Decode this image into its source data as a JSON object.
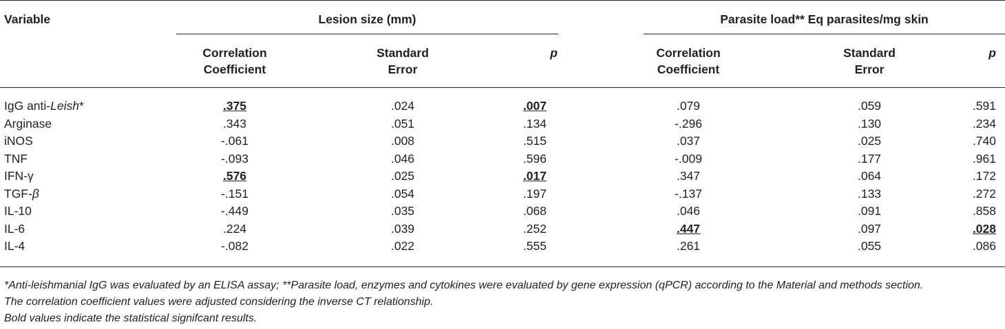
{
  "header": {
    "variable": "Variable",
    "lesion_group": "Lesion size (mm)",
    "parasite_group": "Parasite load** Eq parasites/mg skin",
    "corr_line1": "Correlation",
    "corr_line2": "Coefficient",
    "se_line1": "Standard",
    "se_line2": "Error",
    "p": "p"
  },
  "rows": [
    {
      "variable_prefix": "IgG anti-",
      "variable_italic": "Leish",
      "variable_suffix": "*",
      "lesion_cc": ".375",
      "lesion_se": ".024",
      "lesion_p": ".007",
      "parasite_cc": ".079",
      "parasite_se": ".059",
      "parasite_p": ".591"
    },
    {
      "variable_prefix": "Arginase",
      "variable_italic": "",
      "variable_suffix": "",
      "lesion_cc": ".343",
      "lesion_se": ".051",
      "lesion_p": ".134",
      "parasite_cc": "-.296",
      "parasite_se": ".130",
      "parasite_p": ".234"
    },
    {
      "variable_prefix": "iNOS",
      "variable_italic": "",
      "variable_suffix": "",
      "lesion_cc": "-.061",
      "lesion_se": ".008",
      "lesion_p": ".515",
      "parasite_cc": ".037",
      "parasite_se": ".025",
      "parasite_p": ".740"
    },
    {
      "variable_prefix": "TNF",
      "variable_italic": "",
      "variable_suffix": "",
      "lesion_cc": "-.093",
      "lesion_se": ".046",
      "lesion_p": ".596",
      "parasite_cc": "-.009",
      "parasite_se": ".177",
      "parasite_p": ".961"
    },
    {
      "variable_prefix": "IFN-γ",
      "variable_italic": "",
      "variable_suffix": "",
      "lesion_cc": ".576",
      "lesion_se": ".025",
      "lesion_p": ".017",
      "parasite_cc": ".347",
      "parasite_se": ".064",
      "parasite_p": ".172"
    },
    {
      "variable_prefix": "TGF-",
      "variable_italic": "β",
      "variable_suffix": "",
      "lesion_cc": "-.151",
      "lesion_se": ".054",
      "lesion_p": ".197",
      "parasite_cc": "-.137",
      "parasite_se": ".133",
      "parasite_p": ".272"
    },
    {
      "variable_prefix": "IL-10",
      "variable_italic": "",
      "variable_suffix": "",
      "lesion_cc": "-.449",
      "lesion_se": ".035",
      "lesion_p": ".068",
      "parasite_cc": ".046",
      "parasite_se": ".091",
      "parasite_p": ".858"
    },
    {
      "variable_prefix": "IL-6",
      "variable_italic": "",
      "variable_suffix": "",
      "lesion_cc": ".224",
      "lesion_se": ".039",
      "lesion_p": ".252",
      "parasite_cc": ".447",
      "parasite_se": ".097",
      "parasite_p": ".028"
    },
    {
      "variable_prefix": "IL-4",
      "variable_italic": "",
      "variable_suffix": "",
      "lesion_cc": "-.082",
      "lesion_se": ".022",
      "lesion_p": ".555",
      "parasite_cc": ".261",
      "parasite_se": ".055",
      "parasite_p": ".086"
    }
  ],
  "significant": [
    {
      "row": 0,
      "col": "lesion_cc"
    },
    {
      "row": 0,
      "col": "lesion_p"
    },
    {
      "row": 4,
      "col": "lesion_cc"
    },
    {
      "row": 4,
      "col": "lesion_p"
    },
    {
      "row": 7,
      "col": "parasite_cc"
    },
    {
      "row": 7,
      "col": "parasite_p"
    }
  ],
  "footnotes": {
    "line1": "*Anti-leishmanial IgG was evaluated by an ELISA assay; **Parasite load, enzymes and cytokines were evaluated by gene expression (qPCR) according to the Material and methods section.",
    "line2": "The correlation coefficient values were adjusted considering the inverse CT relationship.",
    "line3": "Bold values indicate the statistical signifcant results."
  }
}
